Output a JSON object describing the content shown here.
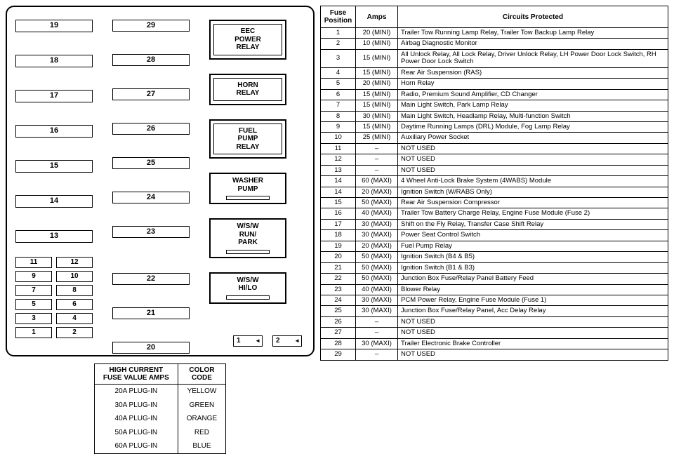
{
  "fusebox": {
    "colA_slots": [
      "19",
      "18",
      "17",
      "16",
      "15",
      "14",
      "13"
    ],
    "colA_small": [
      "11",
      "12",
      "9",
      "10",
      "7",
      "8",
      "5",
      "6",
      "3",
      "4",
      "1",
      "2"
    ],
    "colB_slots": [
      "29",
      "28",
      "27",
      "26",
      "25",
      "24",
      "23",
      "22",
      "21",
      "20"
    ],
    "relays": [
      {
        "lines": [
          "EEC",
          "POWER",
          "RELAY"
        ],
        "inner": true
      },
      {
        "lines": [
          "HORN",
          "RELAY"
        ],
        "inner": true
      },
      {
        "lines": [
          "FUEL",
          "PUMP",
          "RELAY"
        ],
        "inner": true
      },
      {
        "lines": [
          "WASHER",
          "PUMP"
        ],
        "inner": false,
        "bar": true
      },
      {
        "lines": [
          "W/S/W",
          "RUN/",
          "PARK"
        ],
        "inner": false,
        "bar": true
      },
      {
        "lines": [
          "W/S/W",
          "HI/LO"
        ],
        "inner": false,
        "bar": true
      }
    ],
    "markers": [
      "1",
      "2"
    ]
  },
  "legend": {
    "header_left": "HIGH CURRENT\nFUSE VALUE AMPS",
    "header_right": "COLOR\nCODE",
    "rows": [
      [
        "20A PLUG-IN",
        "YELLOW"
      ],
      [
        "30A PLUG-IN",
        "GREEN"
      ],
      [
        "40A PLUG-IN",
        "ORANGE"
      ],
      [
        "50A PLUG-IN",
        "RED"
      ],
      [
        "60A PLUG-IN",
        "BLUE"
      ]
    ]
  },
  "table": {
    "headers": [
      "Fuse\nPosition",
      "Amps",
      "Circuits  Protected"
    ],
    "rows": [
      [
        "1",
        "20 (MINI)",
        "Trailer Tow Running Lamp Relay, Trailer Tow Backup Lamp Relay"
      ],
      [
        "2",
        "10 (MINI)",
        "Airbag Diagnostic Monitor"
      ],
      [
        "3",
        "15 (MINI)",
        "All Unlock Relay, All Lock Relay, Driver Unlock Relay, LH Power Door Lock Switch, RH Power Door Lock Switch"
      ],
      [
        "4",
        "15 (MINI)",
        "Rear Air Suspension (RAS)"
      ],
      [
        "5",
        "20 (MINI)",
        "Horn Relay"
      ],
      [
        "6",
        "15 (MINI)",
        "Radio, Premium Sound Amplifier, CD Changer"
      ],
      [
        "7",
        "15 (MINI)",
        "Main Light Switch, Park Lamp Relay"
      ],
      [
        "8",
        "30 (MINI)",
        "Main Light Switch, Headlamp Relay, Multi-function Switch"
      ],
      [
        "9",
        "15 (MINI)",
        "Daytime Running Lamps (DRL) Module, Fog Lamp Relay"
      ],
      [
        "10",
        "25 (MINI)",
        "Auxiliary Power Socket"
      ],
      [
        "11",
        "–",
        "NOT USED"
      ],
      [
        "12",
        "–",
        "NOT USED"
      ],
      [
        "13",
        "–",
        "NOT USED"
      ],
      [
        "14",
        "60 (MAXI)",
        "4 Wheel Anti-Lock Brake System (4WABS) Module"
      ],
      [
        "14",
        "20 (MAXI)",
        "Ignition Switch (W/RABS Only)"
      ],
      [
        "15",
        "50 (MAXI)",
        "Rear Air Suspension Compressor"
      ],
      [
        "16",
        "40 (MAXI)",
        "Trailer Tow Battery Charge Relay, Engine Fuse Module (Fuse 2)"
      ],
      [
        "17",
        "30 (MAXI)",
        "Shift on the Fly Relay, Transfer Case Shift Relay"
      ],
      [
        "18",
        "30 (MAXI)",
        "Power Seat Control Switch"
      ],
      [
        "19",
        "20 (MAXI)",
        "Fuel Pump Relay"
      ],
      [
        "20",
        "50 (MAXI)",
        "Ignition Switch (B4 & B5)"
      ],
      [
        "21",
        "50 (MAXI)",
        "Ignition Switch (B1 & B3)"
      ],
      [
        "22",
        "50 (MAXI)",
        "Junction Box Fuse/Relay Panel Battery Feed"
      ],
      [
        "23",
        "40 (MAXI)",
        "Blower Relay"
      ],
      [
        "24",
        "30 (MAXI)",
        "PCM Power Relay, Engine Fuse Module (Fuse 1)"
      ],
      [
        "25",
        "30 (MAXI)",
        "Junction Box Fuse/Relay Panel, Acc Delay Relay"
      ],
      [
        "26",
        "–",
        "NOT USED"
      ],
      [
        "27",
        "–",
        "NOT USED"
      ],
      [
        "28",
        "30 (MAXI)",
        "Trailer Electronic Brake Controller"
      ],
      [
        "29",
        "–",
        "NOT USED"
      ]
    ]
  }
}
